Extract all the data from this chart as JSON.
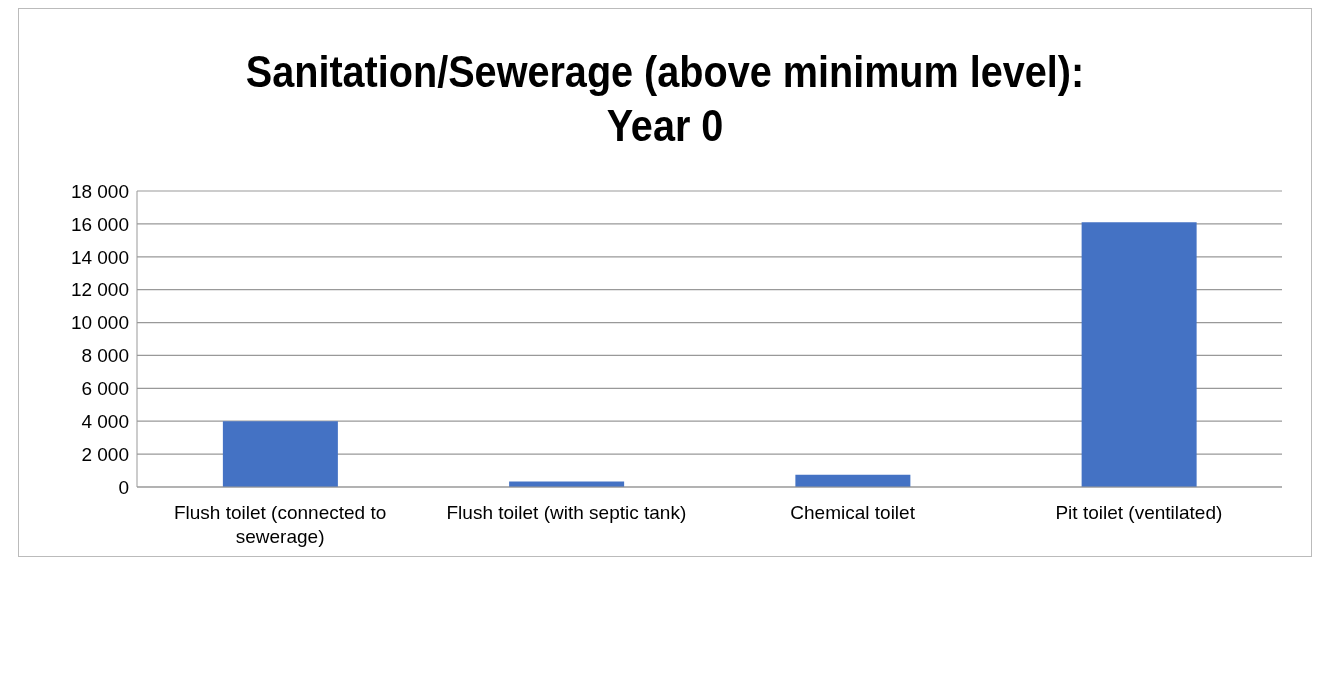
{
  "chart_data": {
    "type": "bar",
    "title": "Sanitation/Sewerage (above minimum level):\nYear 0",
    "categories": [
      "Flush toilet (connected to sewerage)",
      "Flush toilet (with septic tank)",
      "Chemical toilet",
      "Pit toilet (ventilated)"
    ],
    "values": [
      4000,
      330,
      750,
      16100
    ],
    "color": "#4472c4",
    "ylim": [
      0,
      18000
    ],
    "yticks": [
      0,
      {
        "value": 2000,
        "label": "2 000"
      },
      {
        "value": 4000,
        "label": "4 000"
      },
      {
        "value": 6000,
        "label": "6 000"
      },
      {
        "value": 8000,
        "label": "8 000"
      },
      {
        "value": 10000,
        "label": "10 000"
      },
      {
        "value": 12000,
        "label": "12 000"
      },
      {
        "value": 14000,
        "label": "14 000"
      },
      {
        "value": 16000,
        "label": "16 000"
      },
      {
        "value": 18000,
        "label": "18 000"
      }
    ],
    "grid": "y"
  }
}
